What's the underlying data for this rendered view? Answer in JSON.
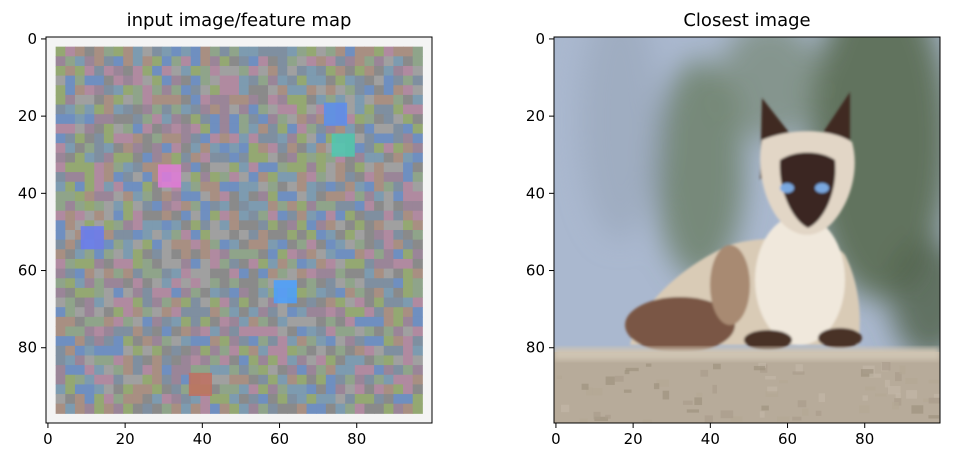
{
  "chart_data": [
    {
      "type": "image",
      "title": "input image/feature map",
      "xticks": [
        0,
        20,
        40,
        60,
        80
      ],
      "yticks": [
        0,
        20,
        40,
        60,
        80
      ],
      "xlim": [
        -0.5,
        99.5
      ],
      "ylim": [
        99.5,
        -0.5
      ],
      "grid_size": 100,
      "content": "noisy multicolor pixel pattern (feature map)",
      "palette": [
        "#8a8a8a",
        "#7f8fa0",
        "#8fa48a",
        "#9a8598",
        "#a88f82",
        "#7d9bb0",
        "#94a872",
        "#b08aa0",
        "#6f8fc0",
        "#a0a0a0"
      ],
      "highlights": [
        {
          "x": 32,
          "y": 36,
          "color": "#e07ad8"
        },
        {
          "x": 75,
          "y": 20,
          "color": "#5a8ef0"
        },
        {
          "x": 77,
          "y": 28,
          "color": "#4dc9b0"
        },
        {
          "x": 62,
          "y": 66,
          "color": "#4aa0ff"
        },
        {
          "x": 12,
          "y": 52,
          "color": "#6a7cf0"
        },
        {
          "x": 40,
          "y": 90,
          "color": "#c07060"
        }
      ]
    },
    {
      "type": "image",
      "title": "Closest image",
      "xticks": [
        0,
        20,
        40,
        60,
        80
      ],
      "yticks": [
        0,
        20,
        40,
        60,
        80
      ],
      "xlim": [
        -0.5,
        99.5
      ],
      "ylim": [
        99.5,
        -0.5
      ],
      "grid_size": 100,
      "content": "siamese cat lying on a stone ledge",
      "colors": {
        "sky": "#aab8cf",
        "foliage": "#5c6e55",
        "ledge": "#b7ab9a",
        "ledge_edge": "#cfc4b2",
        "cat_body": "#e6dccd",
        "cat_points": "#4a3328",
        "eyes": "#7aa8e0"
      }
    }
  ]
}
